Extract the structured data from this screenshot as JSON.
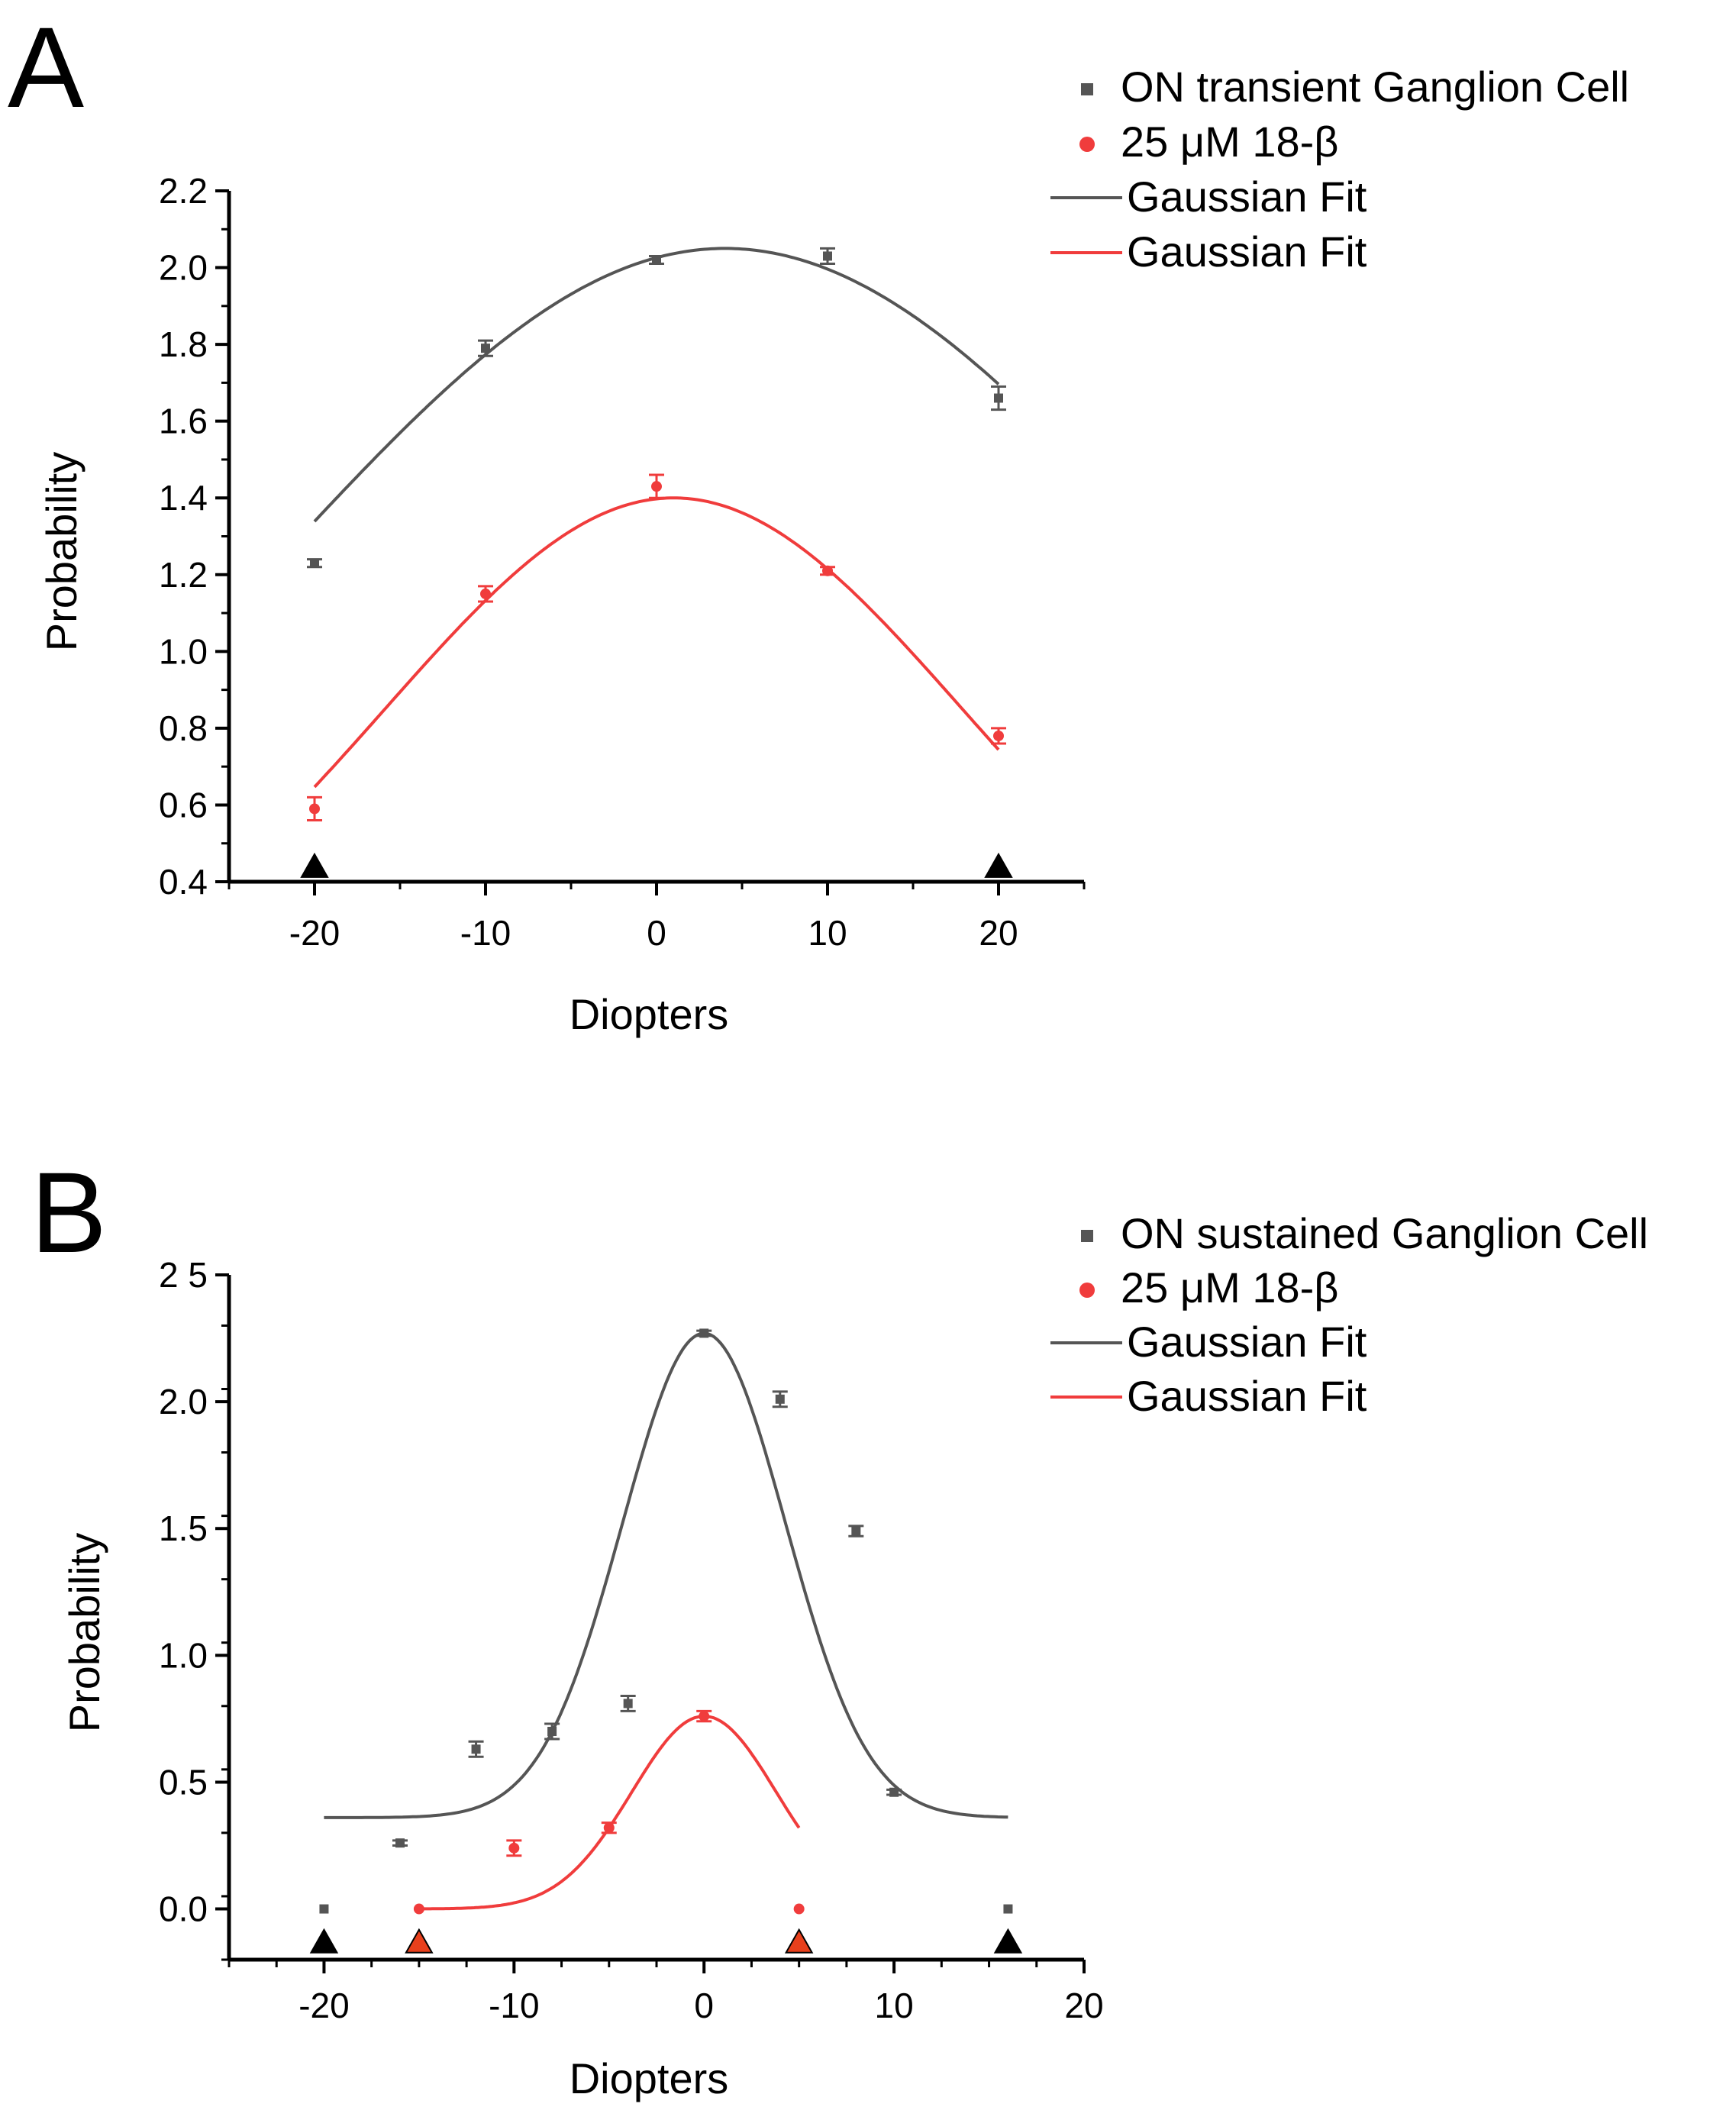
{
  "chart_data": [
    {
      "panel_label": "A",
      "type": "scatter",
      "xlabel": "Diopters",
      "ylabel": "Probability",
      "xlim": [
        -25,
        25
      ],
      "ylim": [
        0.4,
        2.2
      ],
      "xticks": [
        -20,
        -10,
        0,
        10,
        20
      ],
      "xtick_labels": [
        "-20",
        "-10",
        "0",
        "10",
        "20"
      ],
      "yticks": [
        0.4,
        0.6,
        0.8,
        1.0,
        1.2,
        1.4,
        1.6,
        1.8,
        2.0,
        2.2
      ],
      "ytick_labels": [
        "0.4",
        "0.6",
        "0.8",
        "1.0",
        "1.2",
        "1.4",
        "1.6",
        "1.8",
        "2.0",
        "2.2"
      ],
      "series": [
        {
          "name": "ON transient Ganglion Cell",
          "marker": "square",
          "color": "#555555",
          "x": [
            -20,
            -10,
            0,
            10,
            20
          ],
          "y": [
            1.23,
            1.79,
            2.02,
            2.03,
            1.66
          ],
          "err": [
            0.01,
            0.02,
            0.01,
            0.02,
            0.03
          ]
        },
        {
          "name": "25 μM 18-β",
          "marker": "circle",
          "color": "#f03c3c",
          "x": [
            -20,
            -10,
            0,
            10,
            20
          ],
          "y": [
            0.59,
            1.15,
            1.43,
            1.21,
            0.78
          ],
          "err": [
            0.03,
            0.02,
            0.03,
            0.01,
            0.02
          ]
        }
      ],
      "fits": [
        {
          "name": "Gaussian Fit",
          "color": "#555555",
          "y0": 0,
          "A": 2.05,
          "xc": 4,
          "w": 52,
          "x_range": [
            -20,
            20
          ]
        },
        {
          "name": "Gaussian Fit",
          "color": "#f03c3c",
          "y0": 0,
          "A": 1.4,
          "xc": 1,
          "w": 33.8,
          "x_range": [
            -20,
            20
          ]
        }
      ],
      "triangles": [
        {
          "x": -20,
          "y": 0.44,
          "color": "#000000"
        },
        {
          "x": 20,
          "y": 0.44,
          "color": "#000000"
        }
      ],
      "legend": [
        {
          "kind": "square",
          "color": "#555555",
          "label": "ON transient Ganglion Cell"
        },
        {
          "kind": "circle",
          "color": "#f03c3c",
          "label": "25 μM 18-β"
        },
        {
          "kind": "line",
          "color": "#555555",
          "label": "Gaussian Fit"
        },
        {
          "kind": "line",
          "color": "#f03c3c",
          "label": "Gaussian Fit"
        }
      ]
    },
    {
      "panel_label": "B",
      "type": "scatter",
      "xlabel": "Diopters",
      "ylabel": "Probability",
      "xlim": [
        -25,
        20
      ],
      "ylim": [
        -0.2,
        2.5
      ],
      "xticks": [
        -20,
        -10,
        0,
        10,
        20
      ],
      "xtick_labels": [
        "-20",
        "-10",
        "0",
        "10",
        "20"
      ],
      "yticks": [
        0.0,
        0.5,
        1.0,
        1.5,
        2.0,
        2.5
      ],
      "ytick_labels": [
        "0.0",
        "0.5",
        "1.0",
        "1.5",
        "2.0",
        "2 5"
      ],
      "series": [
        {
          "name": "ON sustained Ganglion Cell",
          "marker": "square",
          "color": "#555555",
          "x": [
            -20,
            -16,
            -12,
            -8,
            -4,
            0,
            4,
            8,
            10,
            16
          ],
          "y": [
            0.0,
            0.26,
            0.63,
            0.7,
            0.81,
            2.27,
            2.01,
            1.49,
            0.46,
            0.0
          ],
          "err": [
            0.0,
            0.01,
            0.03,
            0.03,
            0.03,
            0.01,
            0.03,
            0.02,
            0.01,
            0.0
          ]
        },
        {
          "name": "25 μM 18-β",
          "marker": "circle",
          "color": "#f03c3c",
          "x": [
            -15,
            -10,
            -5,
            0,
            5
          ],
          "y": [
            0.0,
            0.24,
            0.32,
            0.76,
            0.0
          ],
          "err": [
            0.0,
            0.03,
            0.02,
            0.02,
            0.0
          ]
        }
      ],
      "fits": [
        {
          "name": "Gaussian Fit",
          "color": "#555555",
          "y0": 0.36,
          "A": 1.91,
          "xc": 0,
          "w": 8.6,
          "x_range": [
            -20,
            16
          ]
        },
        {
          "name": "Gaussian Fit",
          "color": "#f03c3c",
          "y0": 0,
          "A": 0.76,
          "xc": 0,
          "w": 7.6,
          "x_range": [
            -15,
            5
          ]
        }
      ],
      "triangles": [
        {
          "x": -20,
          "y": -0.13,
          "color": "#000000"
        },
        {
          "x": -15,
          "y": -0.13,
          "color": "#e8401c"
        },
        {
          "x": 5,
          "y": -0.13,
          "color": "#e8401c"
        },
        {
          "x": 16,
          "y": -0.13,
          "color": "#000000"
        }
      ],
      "legend": [
        {
          "kind": "square",
          "color": "#555555",
          "label": "ON sustained Ganglion Cell"
        },
        {
          "kind": "circle",
          "color": "#f03c3c",
          "label": "25 μM 18-β"
        },
        {
          "kind": "line",
          "color": "#555555",
          "label": "Gaussian Fit"
        },
        {
          "kind": "line",
          "color": "#f03c3c",
          "label": "Gaussian Fit"
        }
      ]
    }
  ]
}
